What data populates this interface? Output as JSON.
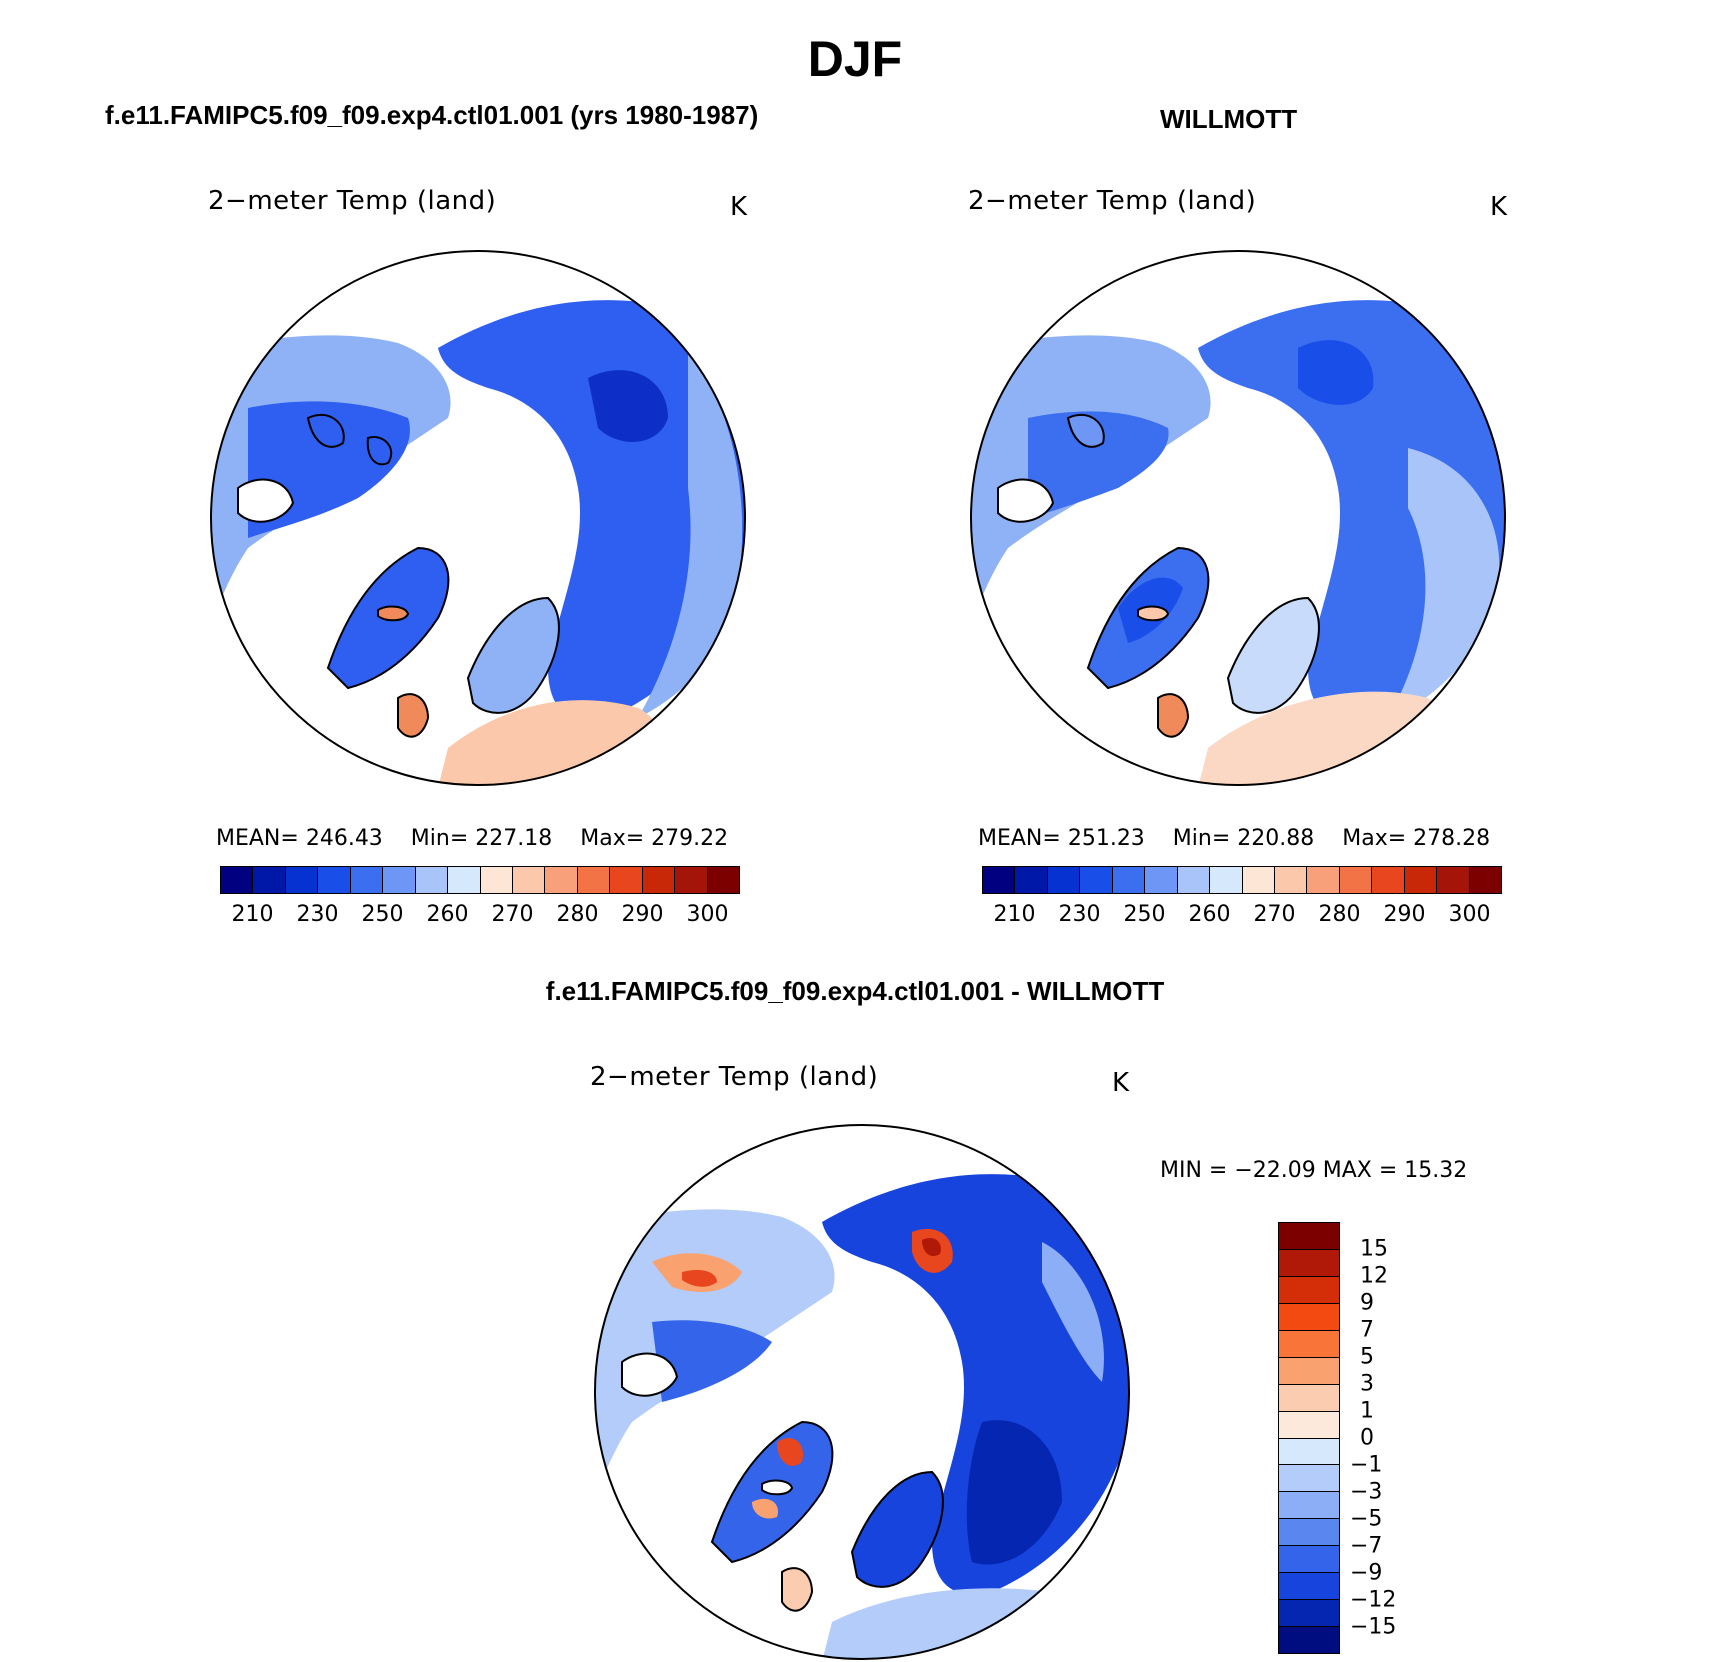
{
  "title": "DJF",
  "panels": {
    "model": {
      "header": "f.e11.FAMIPC5.f09_f09.exp4.ctl01.001 (yrs 1980-1987)",
      "variable": "2−meter Temp (land)",
      "units": "K",
      "stats": {
        "mean_label": "MEAN=",
        "mean": "246.43",
        "min_label": "Min=",
        "min": "227.18",
        "max_label": "Max=",
        "max": "279.22"
      }
    },
    "obs": {
      "header": "WILLMOTT",
      "variable": "2−meter Temp (land)",
      "units": "K",
      "stats": {
        "mean_label": "MEAN=",
        "mean": "251.23",
        "min_label": "Min=",
        "min": "220.88",
        "max_label": "Max=",
        "max": "278.28"
      }
    },
    "diff": {
      "header": "f.e11.FAMIPC5.f09_f09.exp4.ctl01.001 - WILLMOTT",
      "variable": "2−meter Temp (land)",
      "units": "K",
      "minmax": "MIN = −22.09  MAX =   15.32"
    }
  },
  "colorbar_abs": {
    "colors": [
      "#000080",
      "#0018a8",
      "#0532d0",
      "#1a4ee8",
      "#3c6ef0",
      "#6e96f4",
      "#a8c4f8",
      "#d6e8fc",
      "#fde6d6",
      "#fbc8ac",
      "#f7a07a",
      "#f27446",
      "#e8461e",
      "#c82808",
      "#a51408",
      "#7d0000"
    ],
    "labels": [
      "210",
      "230",
      "250",
      "260",
      "270",
      "280",
      "290",
      "300"
    ]
  },
  "colorbar_diff": {
    "colors": [
      "#7d0000",
      "#b01808",
      "#d42e08",
      "#f24a10",
      "#f87438",
      "#f9a270",
      "#fcccb0",
      "#fde8dc",
      "#d6e8fc",
      "#b4ccfa",
      "#8caef6",
      "#5a86f0",
      "#3464ea",
      "#1644dc",
      "#0526b0",
      "#000d80"
    ],
    "labels": [
      "15",
      "12",
      "9",
      "7",
      "5",
      "3",
      "1",
      "0",
      "−1",
      "−3",
      "−5",
      "−7",
      "−9",
      "−12",
      "−15"
    ]
  },
  "map_colors": {
    "land_blue": "#2f5ff0",
    "land_light": "#8fb2f6",
    "land_pale": "#c9dbfa",
    "warm": "#fbc8ac",
    "warm_dark": "#f08a5a",
    "deep_blue": "#0d2fc8",
    "hot": "#e8461e"
  }
}
